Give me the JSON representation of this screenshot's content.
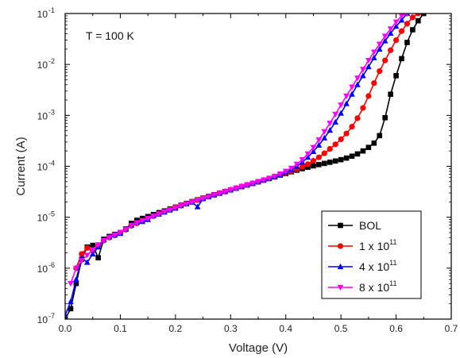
{
  "chart_data": {
    "type": "line",
    "title": "",
    "xlabel": "Voltage (V)",
    "ylabel": "Current (A)",
    "xlim": [
      0.0,
      0.7
    ],
    "ylim": [
      1e-07,
      0.1
    ],
    "yscale": "log",
    "grid": false,
    "legend_position": "bottom-right",
    "annotation": "T = 100 K",
    "x_ticks": [
      "0.0",
      "0.1",
      "0.2",
      "0.3",
      "0.4",
      "0.5",
      "0.6",
      "0.7"
    ],
    "y_ticks": [
      {
        "base": "10",
        "exp": "-7"
      },
      {
        "base": "10",
        "exp": "-6"
      },
      {
        "base": "10",
        "exp": "-5"
      },
      {
        "base": "10",
        "exp": "-4"
      },
      {
        "base": "10",
        "exp": "-3"
      },
      {
        "base": "10",
        "exp": "-2"
      },
      {
        "base": "10",
        "exp": "-1"
      }
    ],
    "series": [
      {
        "name": "BOL",
        "legend_base": "BOL",
        "legend_exp": "",
        "color": "#000000",
        "marker": "square",
        "points": [
          [
            0.0,
            1e-07
          ],
          [
            0.01,
            1.6e-07
          ],
          [
            0.02,
            5e-07
          ],
          [
            0.03,
            1.5e-06
          ],
          [
            0.04,
            2.6e-06
          ],
          [
            0.05,
            2.8e-06
          ],
          [
            0.06,
            1.6e-06
          ],
          [
            0.07,
            3.7e-06
          ],
          [
            0.08,
            4.2e-06
          ],
          [
            0.09,
            4.6e-06
          ],
          [
            0.1,
            5e-06
          ],
          [
            0.11,
            5.9e-06
          ],
          [
            0.12,
            7.6e-06
          ],
          [
            0.13,
            8.7e-06
          ],
          [
            0.14,
            9.5e-06
          ],
          [
            0.15,
            1.03e-05
          ],
          [
            0.16,
            1.13e-05
          ],
          [
            0.17,
            1.23e-05
          ],
          [
            0.18,
            1.33e-05
          ],
          [
            0.19,
            1.45e-05
          ],
          [
            0.2,
            1.58e-05
          ],
          [
            0.21,
            1.72e-05
          ],
          [
            0.22,
            1.87e-05
          ],
          [
            0.23,
            2.03e-05
          ],
          [
            0.24,
            2.2e-05
          ],
          [
            0.25,
            2.38e-05
          ],
          [
            0.26,
            2.57e-05
          ],
          [
            0.27,
            2.77e-05
          ],
          [
            0.28,
            2.98e-05
          ],
          [
            0.29,
            3.2e-05
          ],
          [
            0.3,
            3.45e-05
          ],
          [
            0.31,
            3.72e-05
          ],
          [
            0.32,
            4e-05
          ],
          [
            0.33,
            4.3e-05
          ],
          [
            0.34,
            4.62e-05
          ],
          [
            0.35,
            4.96e-05
          ],
          [
            0.36,
            5.35e-05
          ],
          [
            0.37,
            5.75e-05
          ],
          [
            0.38,
            6.2e-05
          ],
          [
            0.39,
            6.7e-05
          ],
          [
            0.4,
            7.2e-05
          ],
          [
            0.41,
            7.8e-05
          ],
          [
            0.42,
            8.4e-05
          ],
          [
            0.43,
            9e-05
          ],
          [
            0.44,
            9.6e-05
          ],
          [
            0.45,
            0.000102
          ],
          [
            0.46,
            0.000108
          ],
          [
            0.47,
            0.000114
          ],
          [
            0.48,
            0.00012
          ],
          [
            0.49,
            0.000127
          ],
          [
            0.5,
            0.000135
          ],
          [
            0.51,
            0.000145
          ],
          [
            0.52,
            0.000158
          ],
          [
            0.53,
            0.000175
          ],
          [
            0.54,
            0.0002
          ],
          [
            0.55,
            0.000235
          ],
          [
            0.56,
            0.000285
          ],
          [
            0.57,
            0.0004
          ],
          [
            0.58,
            0.0009
          ],
          [
            0.59,
            0.0026
          ],
          [
            0.6,
            0.006
          ],
          [
            0.61,
            0.013
          ],
          [
            0.62,
            0.027
          ],
          [
            0.63,
            0.048
          ],
          [
            0.64,
            0.072
          ],
          [
            0.65,
            0.1
          ]
        ]
      },
      {
        "name": "1 x 10^11",
        "legend_base": "1 x 10",
        "legend_exp": "11",
        "color": "#ff0000",
        "marker": "circle",
        "points": [
          [
            0.02,
            1e-06
          ],
          [
            0.03,
            1.9e-06
          ],
          [
            0.04,
            2.5e-06
          ],
          [
            0.05,
            2.2e-06
          ],
          [
            0.06,
            2.8e-06
          ],
          [
            0.07,
            3.5e-06
          ],
          [
            0.08,
            4e-06
          ],
          [
            0.09,
            4.4e-06
          ],
          [
            0.1,
            4.9e-06
          ],
          [
            0.11,
            5.7e-06
          ],
          [
            0.12,
            6.8e-06
          ],
          [
            0.13,
            7.6e-06
          ],
          [
            0.14,
            8.4e-06
          ],
          [
            0.15,
            9.4e-06
          ],
          [
            0.16,
            1.05e-05
          ],
          [
            0.17,
            1.16e-05
          ],
          [
            0.18,
            1.28e-05
          ],
          [
            0.19,
            1.41e-05
          ],
          [
            0.2,
            1.55e-05
          ],
          [
            0.21,
            1.69e-05
          ],
          [
            0.22,
            1.84e-05
          ],
          [
            0.23,
            2e-05
          ],
          [
            0.24,
            2.17e-05
          ],
          [
            0.25,
            2.35e-05
          ],
          [
            0.26,
            2.54e-05
          ],
          [
            0.27,
            2.75e-05
          ],
          [
            0.28,
            2.97e-05
          ],
          [
            0.29,
            3.2e-05
          ],
          [
            0.3,
            3.45e-05
          ],
          [
            0.31,
            3.72e-05
          ],
          [
            0.32,
            4e-05
          ],
          [
            0.33,
            4.3e-05
          ],
          [
            0.34,
            4.62e-05
          ],
          [
            0.35,
            4.96e-05
          ],
          [
            0.36,
            5.35e-05
          ],
          [
            0.37,
            5.75e-05
          ],
          [
            0.38,
            6.2e-05
          ],
          [
            0.39,
            6.7e-05
          ],
          [
            0.4,
            7.3e-05
          ],
          [
            0.41,
            8e-05
          ],
          [
            0.42,
            8.8e-05
          ],
          [
            0.43,
            9.8e-05
          ],
          [
            0.44,
            0.00011
          ],
          [
            0.45,
            0.000128
          ],
          [
            0.46,
            0.00015
          ],
          [
            0.47,
            0.00018
          ],
          [
            0.48,
            0.00022
          ],
          [
            0.49,
            0.00027
          ],
          [
            0.5,
            0.00034
          ],
          [
            0.51,
            0.00044
          ],
          [
            0.52,
            0.0006
          ],
          [
            0.53,
            0.00088
          ],
          [
            0.54,
            0.0014
          ],
          [
            0.55,
            0.0024
          ],
          [
            0.56,
            0.0043
          ],
          [
            0.57,
            0.0074
          ],
          [
            0.58,
            0.012
          ],
          [
            0.59,
            0.019
          ],
          [
            0.6,
            0.03
          ],
          [
            0.61,
            0.045
          ],
          [
            0.62,
            0.063
          ],
          [
            0.63,
            0.084
          ],
          [
            0.64,
            0.1
          ]
        ]
      },
      {
        "name": "4 x 10^11",
        "legend_base": "4 x 10",
        "legend_exp": "11",
        "color": "#0000ff",
        "marker": "triangle-up",
        "points": [
          [
            0.0,
            1.2e-07
          ],
          [
            0.01,
            2.2e-07
          ],
          [
            0.02,
            6e-07
          ],
          [
            0.03,
            1.6e-06
          ],
          [
            0.04,
            1.3e-06
          ],
          [
            0.05,
            1.9e-06
          ],
          [
            0.06,
            2.6e-06
          ],
          [
            0.07,
            3.6e-06
          ],
          [
            0.08,
            4.1e-06
          ],
          [
            0.09,
            4.5e-06
          ],
          [
            0.1,
            4.8e-06
          ],
          [
            0.11,
            5.8e-06
          ],
          [
            0.12,
            7e-06
          ],
          [
            0.13,
            7.9e-06
          ],
          [
            0.14,
            8.2e-06
          ],
          [
            0.15,
            9e-06
          ],
          [
            0.16,
            1.07e-05
          ],
          [
            0.17,
            1.15e-05
          ],
          [
            0.18,
            1.26e-05
          ],
          [
            0.19,
            1.38e-05
          ],
          [
            0.2,
            1.5e-05
          ],
          [
            0.21,
            1.68e-05
          ],
          [
            0.22,
            1.83e-05
          ],
          [
            0.23,
            1.98e-05
          ],
          [
            0.24,
            1.6e-05
          ],
          [
            0.25,
            2.3e-05
          ],
          [
            0.26,
            2.52e-05
          ],
          [
            0.27,
            2.73e-05
          ],
          [
            0.28,
            2.95e-05
          ],
          [
            0.29,
            3.18e-05
          ],
          [
            0.3,
            3.43e-05
          ],
          [
            0.31,
            3.7e-05
          ],
          [
            0.32,
            3.98e-05
          ],
          [
            0.33,
            4.28e-05
          ],
          [
            0.34,
            4.6e-05
          ],
          [
            0.35,
            4.95e-05
          ],
          [
            0.36,
            5.33e-05
          ],
          [
            0.37,
            5.75e-05
          ],
          [
            0.38,
            6.25e-05
          ],
          [
            0.39,
            6.85e-05
          ],
          [
            0.4,
            7.6e-05
          ],
          [
            0.41,
            8.6e-05
          ],
          [
            0.42,
            0.0001
          ],
          [
            0.43,
            0.00012
          ],
          [
            0.44,
            0.00015
          ],
          [
            0.45,
            0.000195
          ],
          [
            0.46,
            0.00026
          ],
          [
            0.47,
            0.00036
          ],
          [
            0.48,
            0.00051
          ],
          [
            0.49,
            0.00074
          ],
          [
            0.5,
            0.0011
          ],
          [
            0.51,
            0.0017
          ],
          [
            0.52,
            0.0026
          ],
          [
            0.53,
            0.004
          ],
          [
            0.54,
            0.006
          ],
          [
            0.55,
            0.009
          ],
          [
            0.56,
            0.0135
          ],
          [
            0.57,
            0.02
          ],
          [
            0.58,
            0.029
          ],
          [
            0.59,
            0.041
          ],
          [
            0.6,
            0.056
          ],
          [
            0.61,
            0.074
          ],
          [
            0.62,
            0.1
          ]
        ]
      },
      {
        "name": "8 x 10^11",
        "legend_base": "8 x 10",
        "legend_exp": "11",
        "color": "#ff00ff",
        "marker": "triangle-down",
        "points": [
          [
            0.01,
            5e-07
          ],
          [
            0.02,
            1e-06
          ],
          [
            0.03,
            1.4e-06
          ],
          [
            0.04,
            1.8e-06
          ],
          [
            0.05,
            2.3e-06
          ],
          [
            0.06,
            2.9e-06
          ],
          [
            0.07,
            3.5e-06
          ],
          [
            0.08,
            4e-06
          ],
          [
            0.09,
            4.5e-06
          ],
          [
            0.1,
            5e-06
          ],
          [
            0.11,
            5.8e-06
          ],
          [
            0.12,
            6.9e-06
          ],
          [
            0.13,
            7.8e-06
          ],
          [
            0.14,
            8.6e-06
          ],
          [
            0.15,
            9.5e-06
          ],
          [
            0.16,
            1.05e-05
          ],
          [
            0.17,
            1.16e-05
          ],
          [
            0.18,
            1.28e-05
          ],
          [
            0.19,
            1.4e-05
          ],
          [
            0.2,
            1.53e-05
          ],
          [
            0.21,
            1.68e-05
          ],
          [
            0.22,
            1.83e-05
          ],
          [
            0.23,
            1.99e-05
          ],
          [
            0.24,
            2.16e-05
          ],
          [
            0.25,
            2.34e-05
          ],
          [
            0.26,
            2.53e-05
          ],
          [
            0.27,
            2.74e-05
          ],
          [
            0.28,
            2.96e-05
          ],
          [
            0.29,
            3.19e-05
          ],
          [
            0.3,
            3.44e-05
          ],
          [
            0.31,
            3.71e-05
          ],
          [
            0.32,
            4e-05
          ],
          [
            0.33,
            4.3e-05
          ],
          [
            0.34,
            4.63e-05
          ],
          [
            0.35,
            5e-05
          ],
          [
            0.36,
            5.4e-05
          ],
          [
            0.37,
            5.85e-05
          ],
          [
            0.38,
            6.4e-05
          ],
          [
            0.39,
            7.1e-05
          ],
          [
            0.4,
            8e-05
          ],
          [
            0.41,
            9.2e-05
          ],
          [
            0.42,
            0.00011
          ],
          [
            0.43,
            0.000135
          ],
          [
            0.44,
            0.000175
          ],
          [
            0.45,
            0.000235
          ],
          [
            0.46,
            0.00033
          ],
          [
            0.47,
            0.00048
          ],
          [
            0.48,
            0.0007
          ],
          [
            0.49,
            0.00105
          ],
          [
            0.5,
            0.0016
          ],
          [
            0.51,
            0.0024
          ],
          [
            0.52,
            0.0036
          ],
          [
            0.53,
            0.0054
          ],
          [
            0.54,
            0.008
          ],
          [
            0.55,
            0.012
          ],
          [
            0.56,
            0.0175
          ],
          [
            0.57,
            0.025
          ],
          [
            0.58,
            0.036
          ],
          [
            0.59,
            0.05
          ],
          [
            0.6,
            0.068
          ],
          [
            0.61,
            0.09
          ],
          [
            0.62,
            0.1
          ]
        ]
      }
    ]
  }
}
